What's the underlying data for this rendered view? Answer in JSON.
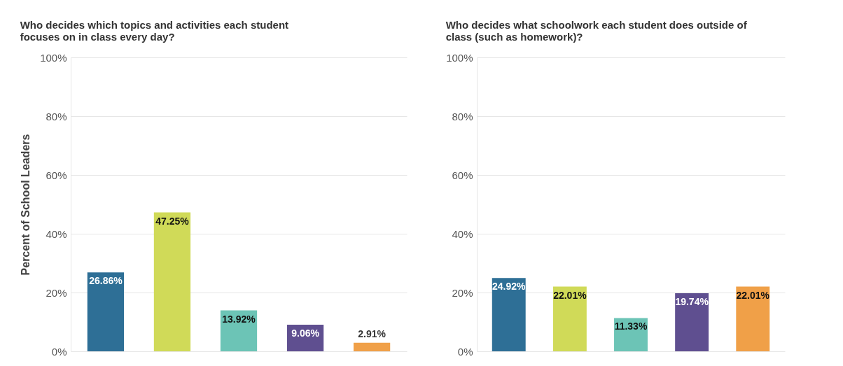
{
  "chart_data": [
    {
      "type": "bar",
      "title": "Who decides which topics and activities each student focuses on in class every day?",
      "ylabel": "Percent of School Leaders",
      "categories": [
        null,
        null,
        null,
        null,
        null
      ],
      "values": [
        26.86,
        47.25,
        13.92,
        9.06,
        2.91
      ],
      "colors": [
        "#2e6f96",
        "#d0da58",
        "#6cc4b6",
        "#5f4f90",
        "#f0a048"
      ],
      "value_labels": [
        "26.86%",
        "47.25%",
        "13.92%",
        "9.06%",
        "2.91%"
      ],
      "ylim": [
        0,
        100
      ],
      "yticks": [
        {
          "value": 0,
          "label": "0%"
        },
        {
          "value": 20,
          "label": "20%"
        },
        {
          "value": 40,
          "label": "40%"
        },
        {
          "value": 60,
          "label": "60%"
        },
        {
          "value": 80,
          "label": "80%"
        },
        {
          "value": 100,
          "label": "100%"
        }
      ],
      "grid": "y",
      "tick_labels": "y"
    },
    {
      "type": "bar",
      "title": "Who decides what schoolwork each student does outside of class (such as homework)?",
      "categories": [
        null,
        null,
        null,
        null,
        null
      ],
      "values": [
        24.92,
        22.01,
        11.33,
        19.74,
        22.01
      ],
      "colors": [
        "#2e6f96",
        "#d0da58",
        "#6cc4b6",
        "#5f4f90",
        "#f0a048"
      ],
      "value_labels": [
        "24.92%",
        "22.01%",
        "11.33%",
        "19.74%",
        "22.01%"
      ],
      "ylim": [
        0,
        100
      ],
      "yticks": [
        {
          "value": 0,
          "label": "0%"
        },
        {
          "value": 20,
          "label": "20%"
        },
        {
          "value": 40,
          "label": "40%"
        },
        {
          "value": 60,
          "label": "60%"
        },
        {
          "value": 80,
          "label": "80%"
        },
        {
          "value": 100,
          "label": "100%"
        }
      ],
      "grid": "y",
      "tick_labels": "y"
    }
  ]
}
